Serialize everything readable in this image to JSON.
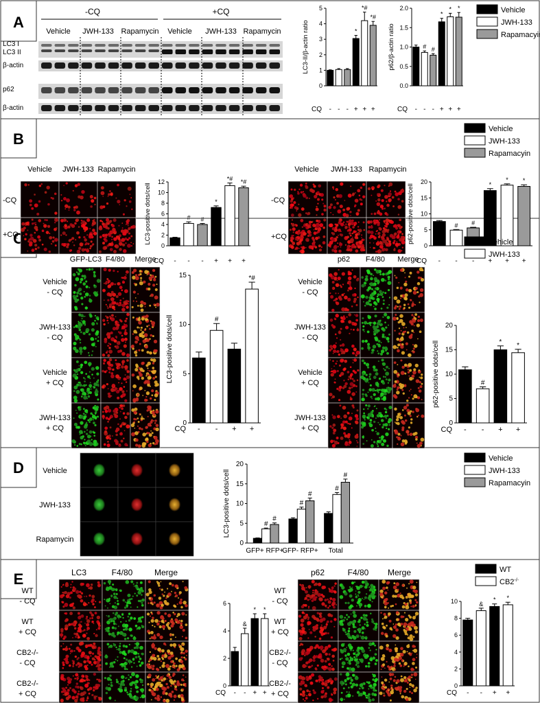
{
  "panels": {
    "A": {
      "letter": "A",
      "groups": [
        "-CQ",
        "+CQ"
      ],
      "lanes": [
        "Vehicle",
        "JWH-133",
        "Rapamycin",
        "Vehicle",
        "JWH-133",
        "Rapamycin"
      ],
      "blot_labels": [
        "LC3 I",
        "LC3 II",
        "β-actin",
        "p62",
        "β-actin"
      ]
    },
    "B": {
      "letter": "B",
      "col_labels": [
        "Vehicle",
        "JWH-133",
        "Rapamycin"
      ],
      "row_labels": [
        "-CQ",
        "+CQ"
      ]
    },
    "C": {
      "letter": "C",
      "left_cols": [
        "GFP-LC3",
        "F4/80",
        "Merge"
      ],
      "right_cols": [
        "p62",
        "F4/80",
        "Merge"
      ],
      "rows": [
        [
          "Vehicle",
          "- CQ"
        ],
        [
          "JWH-133",
          "- CQ"
        ],
        [
          "Vehicle",
          "+ CQ"
        ],
        [
          "JWH-133",
          "+ CQ"
        ]
      ]
    },
    "D": {
      "letter": "D",
      "rows": [
        "Vehicle",
        "JWH-133",
        "Rapamycin"
      ]
    },
    "E": {
      "letter": "E",
      "left_cols": [
        "LC3",
        "F4/80",
        "Merge"
      ],
      "right_cols": [
        "p62",
        "F4/80",
        "Merge"
      ],
      "rows": [
        [
          "WT",
          "- CQ"
        ],
        [
          "WT",
          "+ CQ"
        ],
        [
          "CB2-/-",
          "- CQ"
        ],
        [
          "CB2-/-",
          "+ CQ"
        ]
      ]
    }
  },
  "legends": {
    "A": [
      "Vehicle",
      "JWH-133",
      "Rapamacyin"
    ],
    "B": [
      "Vehicle",
      "JWH-133",
      "Rapamacyin"
    ],
    "C": [
      "Vehicle",
      "JWH-133"
    ],
    "D": [
      "Vehicle",
      "JWH-133",
      "Rapamacyin"
    ],
    "E": [
      "WT",
      "CB2-/-"
    ]
  },
  "colors": {
    "black": "#000000",
    "white": "#ffffff",
    "gray": "#9a9a9a",
    "red": "#c0141c",
    "green": "#2fa22f"
  },
  "chart_data": [
    {
      "id": "A1",
      "type": "bar",
      "ylabel": "LC3-II/β-actin ratio",
      "ylim": [
        0,
        5
      ],
      "yticks": [
        0,
        1,
        2,
        3,
        4,
        5
      ],
      "cq": [
        "-",
        "-",
        "-",
        "+",
        "+",
        "+"
      ],
      "values": [
        1.0,
        1.05,
        1.05,
        3.05,
        4.2,
        3.9
      ],
      "errors": [
        0.03,
        0.06,
        0.06,
        0.2,
        0.55,
        0.25
      ],
      "fills": [
        "black",
        "white",
        "gray",
        "black",
        "white",
        "gray"
      ],
      "annotations": [
        "",
        "",
        "",
        "*",
        "*#",
        "*#"
      ]
    },
    {
      "id": "A2",
      "type": "bar",
      "ylabel": "p62/β-actin ratio",
      "ylim": [
        0,
        2.0
      ],
      "yticks": [
        0.0,
        0.5,
        1.0,
        1.5,
        2.0
      ],
      "cq": [
        "-",
        "-",
        "-",
        "+",
        "+",
        "+"
      ],
      "values": [
        1.0,
        0.86,
        0.79,
        1.65,
        1.78,
        1.77
      ],
      "errors": [
        0.05,
        0.04,
        0.04,
        0.09,
        0.09,
        0.12
      ],
      "fills": [
        "black",
        "white",
        "gray",
        "black",
        "white",
        "gray"
      ],
      "annotations": [
        "",
        "#",
        "#",
        "*",
        "*",
        "*"
      ]
    },
    {
      "id": "B1",
      "type": "bar",
      "ylabel": "LC3-positive dots/cell",
      "ylim": [
        0,
        12
      ],
      "yticks": [
        0,
        2,
        4,
        6,
        8,
        10,
        12
      ],
      "cq": [
        "-",
        "-",
        "-",
        "+",
        "+",
        "+"
      ],
      "values": [
        1.5,
        4.2,
        4.0,
        7.2,
        11.3,
        10.9
      ],
      "errors": [
        0.1,
        0.3,
        0.2,
        0.3,
        0.5,
        0.3
      ],
      "fills": [
        "black",
        "white",
        "gray",
        "black",
        "white",
        "gray"
      ],
      "annotations": [
        "",
        "#",
        "#",
        "*",
        "*#",
        "*#"
      ]
    },
    {
      "id": "B2",
      "type": "bar",
      "ylabel": "p62-positive dots/cell",
      "ylim": [
        0,
        20
      ],
      "yticks": [
        0,
        5,
        10,
        15,
        20
      ],
      "cq": [
        "-",
        "-",
        "-",
        "+",
        "+",
        "+"
      ],
      "values": [
        7.6,
        4.9,
        5.6,
        17.3,
        19.0,
        18.6
      ],
      "errors": [
        0.3,
        0.2,
        0.2,
        0.6,
        0.4,
        0.5
      ],
      "fills": [
        "black",
        "white",
        "gray",
        "black",
        "white",
        "gray"
      ],
      "annotations": [
        "",
        "#",
        "#",
        "*",
        "*",
        "*"
      ]
    },
    {
      "id": "C1",
      "type": "bar",
      "ylabel": "LC3-positive dots/cell",
      "ylim": [
        0,
        15
      ],
      "yticks": [
        0,
        5,
        10,
        15
      ],
      "cq": [
        "-",
        "-",
        "+",
        "+"
      ],
      "values": [
        6.6,
        9.4,
        7.5,
        13.6
      ],
      "errors": [
        0.6,
        0.7,
        0.6,
        0.7
      ],
      "fills": [
        "black",
        "white",
        "black",
        "white"
      ],
      "annotations": [
        "",
        "#",
        "",
        "*#"
      ]
    },
    {
      "id": "C2",
      "type": "bar",
      "ylabel": "p62-positive dots/cell",
      "ylim": [
        0,
        20
      ],
      "yticks": [
        0,
        5,
        10,
        15,
        20
      ],
      "cq": [
        "-",
        "-",
        "+",
        "+"
      ],
      "values": [
        10.9,
        7.0,
        15.0,
        14.4
      ],
      "errors": [
        0.6,
        0.4,
        0.8,
        0.7
      ],
      "fills": [
        "black",
        "white",
        "black",
        "white"
      ],
      "annotations": [
        "",
        "#",
        "*",
        "*"
      ]
    },
    {
      "id": "D1",
      "type": "bar",
      "ylabel": "LC3-positive dots/cell",
      "ylim": [
        0,
        20
      ],
      "yticks": [
        0,
        5,
        10,
        15,
        20
      ],
      "categories": [
        "GFP+ RFP+",
        "GFP- RFP+",
        "Total"
      ],
      "values": [
        [
          1.2,
          3.6,
          4.7
        ],
        [
          6.1,
          8.6,
          10.7
        ],
        [
          7.5,
          12.3,
          15.4
        ]
      ],
      "errors": [
        [
          0.1,
          0.2,
          0.4
        ],
        [
          0.3,
          0.5,
          0.7
        ],
        [
          0.4,
          0.5,
          0.8
        ]
      ],
      "fills": [
        "black",
        "white",
        "gray"
      ],
      "annotations": [
        [
          "",
          "#",
          "#"
        ],
        [
          "",
          "#",
          "#"
        ],
        [
          "",
          "#",
          "#"
        ]
      ]
    },
    {
      "id": "E1",
      "type": "bar",
      "ylabel": "",
      "ylim": [
        0,
        6
      ],
      "yticks": [
        0,
        2,
        4,
        6
      ],
      "cq": [
        "-",
        "-",
        "+",
        "+"
      ],
      "values": [
        2.5,
        3.8,
        4.9,
        4.9
      ],
      "errors": [
        0.3,
        0.4,
        0.35,
        0.35
      ],
      "fills": [
        "black",
        "white",
        "black",
        "white"
      ],
      "annotations": [
        "",
        "&",
        "*",
        "*"
      ]
    },
    {
      "id": "E2",
      "type": "bar",
      "ylabel": "",
      "ylim": [
        0,
        10
      ],
      "yticks": [
        0,
        2,
        4,
        6,
        8,
        10
      ],
      "cq": [
        "-",
        "-",
        "+",
        "+"
      ],
      "values": [
        7.8,
        8.9,
        9.4,
        9.6
      ],
      "errors": [
        0.2,
        0.3,
        0.3,
        0.3
      ],
      "fills": [
        "black",
        "white",
        "black",
        "white"
      ],
      "annotations": [
        "",
        "&",
        "*",
        "*"
      ]
    }
  ],
  "cq_label": "CQ"
}
